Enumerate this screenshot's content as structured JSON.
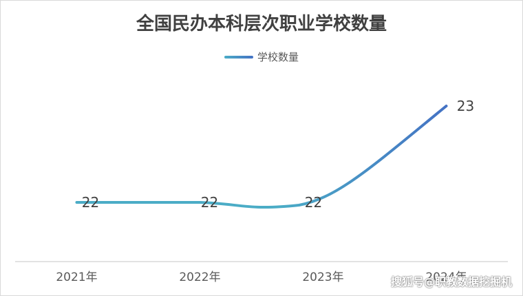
{
  "chart_data": {
    "type": "line",
    "title": "全国民办本科层次职业学校数量",
    "categories": [
      "2021年",
      "2022年",
      "2023年",
      "2024年"
    ],
    "series": [
      {
        "name": "学校数量",
        "values": [
          22,
          22,
          22,
          23
        ],
        "color": "#4472c4"
      }
    ],
    "data_labels": [
      "22",
      "22",
      "22",
      "23"
    ],
    "legend_position": "top",
    "grid": false,
    "smooth": true
  },
  "colors": {
    "line_start": "#4bacc6",
    "line_end": "#4472c4",
    "axis": "#d9d9d9",
    "text": "#404040"
  },
  "watermark": "搜狐号@职教数据挖掘机"
}
